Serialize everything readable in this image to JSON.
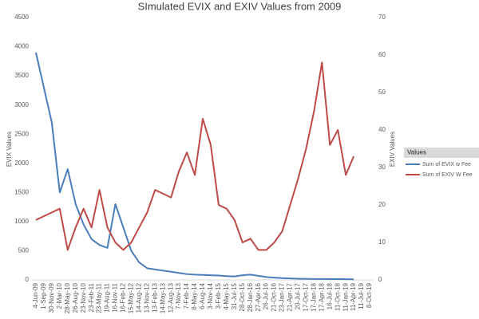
{
  "chart_data": {
    "type": "line",
    "title": "SImulated EVIX and EXIV Values from 2009",
    "y_label": "EVIX Values",
    "y2_label": "EXIV Values",
    "legend_title": "Values",
    "categories": [
      "4-Jun-09",
      "1-Sep-09",
      "30-Nov-09",
      "2-Mar-10",
      "28-May-10",
      "26-Aug-10",
      "23-Nov-10",
      "23-Feb-11",
      "23-May-11",
      "19-Aug-11",
      "16-Nov-11",
      "16-Feb-12",
      "15-May-12",
      "14-Aug-12",
      "13-Nov-12",
      "13-Feb-13",
      "14-May-13",
      "12-Aug-13",
      "7-Nov-13",
      "7-Feb-14",
      "8-May-14",
      "6-Aug-14",
      "3-Nov-14",
      "3-Feb-15",
      "4-May-15",
      "31-Jul-15",
      "28-Oct-15",
      "28-Jan-16",
      "27-Apr-16",
      "26-Jul-16",
      "21-Oct-16",
      "23-Jan-17",
      "21-Apr-17",
      "20-Jul-17",
      "17-Oct-17",
      "17-Jan-18",
      "17-Apr-18",
      "16-Jul-18",
      "11-Oct-18",
      "11-Jan-19",
      "11-Apr-19",
      "11-Jul-19",
      "8-Oct-19"
    ],
    "series": [
      {
        "name": "Sum of EVIX w Fee",
        "color": "#4a7ebb",
        "axis": "y",
        "values": [
          3900,
          3300,
          2700,
          1500,
          1900,
          1300,
          950,
          700,
          600,
          550,
          1300,
          900,
          500,
          300,
          200,
          180,
          160,
          140,
          120,
          100,
          90,
          85,
          80,
          75,
          65,
          60,
          80,
          90,
          70,
          50,
          40,
          30,
          25,
          20,
          18,
          16,
          15,
          14,
          13,
          12,
          11,
          null,
          null
        ]
      },
      {
        "name": "Sum of EXIV W Fee",
        "color": "#be4b48",
        "axis": "y2",
        "values": [
          16,
          17,
          18,
          19,
          8,
          14,
          19,
          14,
          24,
          14,
          10,
          8,
          10,
          14,
          18,
          24,
          23,
          22,
          29,
          34,
          28,
          43,
          36,
          20,
          19,
          16,
          10,
          11,
          8,
          8,
          10,
          13,
          20,
          27,
          35,
          45,
          58,
          36,
          40,
          28,
          33,
          null,
          null
        ]
      }
    ],
    "ylim": [
      0,
      4500
    ],
    "yticks": [
      0,
      500,
      1000,
      1500,
      2000,
      2500,
      3000,
      3500,
      4000,
      4500
    ],
    "y2lim": [
      0,
      70
    ],
    "y2ticks": [
      0,
      10,
      20,
      30,
      40,
      50,
      60,
      70
    ],
    "grid": false
  }
}
